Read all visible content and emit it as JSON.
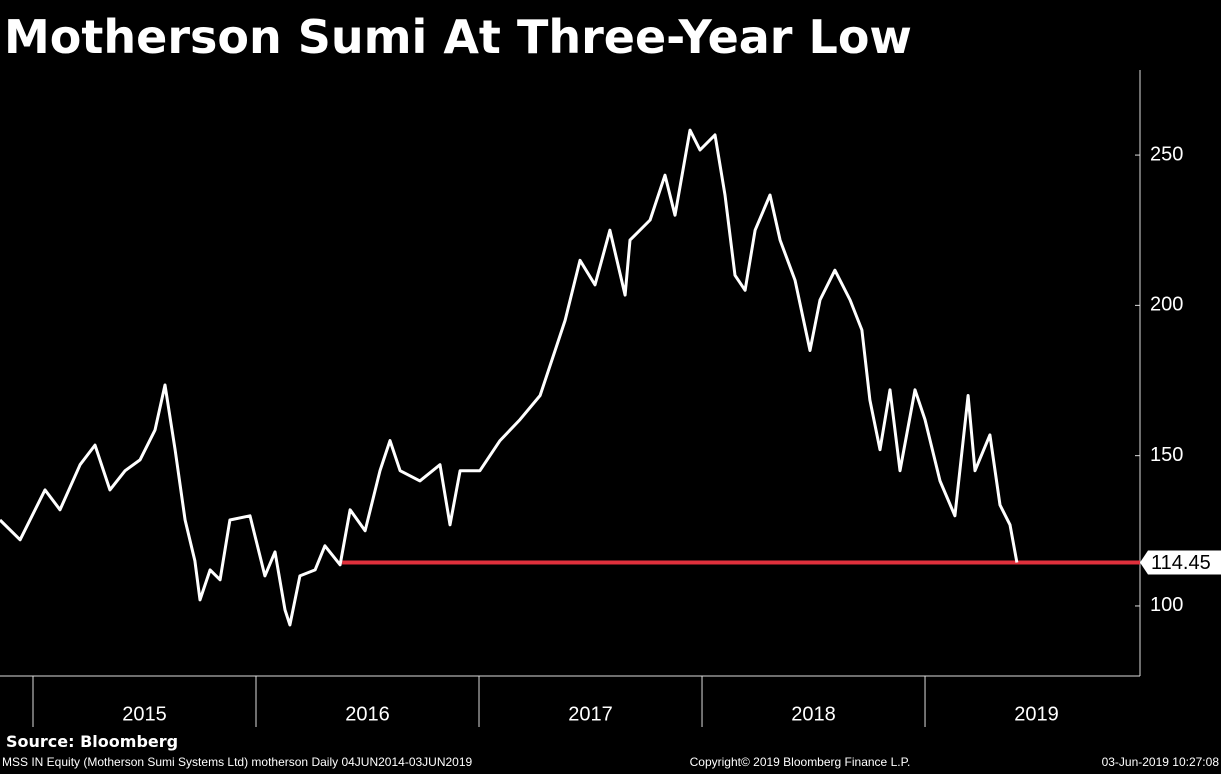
{
  "chart_data": {
    "type": "line",
    "title": "Motherson Sumi At Three-Year Low",
    "source": "Source: Bloomberg",
    "footer_left": "MSS IN Equity (Motherson Sumi Systems Ltd) motherson  Daily 04JUN2014-03JUN2019",
    "footer_center": "Copyright© 2019 Bloomberg Finance L.P.",
    "footer_right": "03-Jun-2019 10:27:08",
    "series": [
      {
        "color": "#ffffff",
        "x": [
          2014.852,
          2014.942,
          2015.054,
          2015.121,
          2015.211,
          2015.278,
          2015.345,
          2015.413,
          2015.48,
          2015.547,
          2015.592,
          2015.637,
          2015.682,
          2015.726,
          2015.749,
          2015.794,
          2015.839,
          2015.883,
          2015.973,
          2016.04,
          2016.085,
          2016.13,
          2016.152,
          2016.197,
          2016.265,
          2016.309,
          2016.377,
          2016.422,
          2016.489,
          2016.556,
          2016.601,
          2016.646,
          2016.735,
          2016.825,
          2016.87,
          2016.915,
          2017.004,
          2017.094,
          2017.184,
          2017.274,
          2017.341,
          2017.386,
          2017.453,
          2017.52,
          2017.587,
          2017.655,
          2017.677,
          2017.767,
          2017.834,
          2017.879,
          2017.946,
          2017.991,
          2018.058,
          2018.103,
          2018.148,
          2018.193,
          2018.238,
          2018.305,
          2018.35,
          2018.417,
          2018.484,
          2018.529,
          2018.596,
          2018.664,
          2018.717,
          2018.753,
          2018.798,
          2018.843,
          2018.888,
          2018.955,
          2019.0,
          2019.067,
          2019.134,
          2019.193,
          2019.224,
          2019.291,
          2019.336,
          2019.381,
          2019.412
        ],
        "values": [
          128.6,
          122,
          138.6,
          132,
          147,
          153.5,
          138.6,
          145,
          148.6,
          158.5,
          173.5,
          152,
          128.6,
          115,
          102,
          112,
          108.7,
          128.6,
          130,
          110,
          118,
          98.7,
          93.7,
          110,
          112,
          120,
          113.7,
          132,
          125,
          145,
          155,
          145,
          141.6,
          147,
          127,
          145,
          145,
          155,
          162,
          170,
          185,
          195,
          215,
          206.8,
          225,
          203.4,
          221.7,
          228.4,
          243.3,
          230,
          258.3,
          251.7,
          256.7,
          236.7,
          210,
          205,
          225,
          236.7,
          221.7,
          208.4,
          185,
          201.8,
          211.7,
          201.8,
          191.8,
          168.5,
          152,
          171.9,
          145,
          171.9,
          162,
          141.6,
          130,
          170,
          145,
          156.9,
          133.6,
          127,
          114.45
        ]
      }
    ],
    "reference_line": {
      "value": 114.45,
      "start": 2016.386,
      "color": "#e0303c"
    },
    "xlim": [
      2014.852,
      2019.964
    ],
    "xticks": [
      2015,
      2016,
      2017,
      2018,
      2019
    ],
    "ylim": [
      76.7,
      278.3
    ],
    "yticks": [
      100,
      150,
      200,
      250
    ]
  }
}
